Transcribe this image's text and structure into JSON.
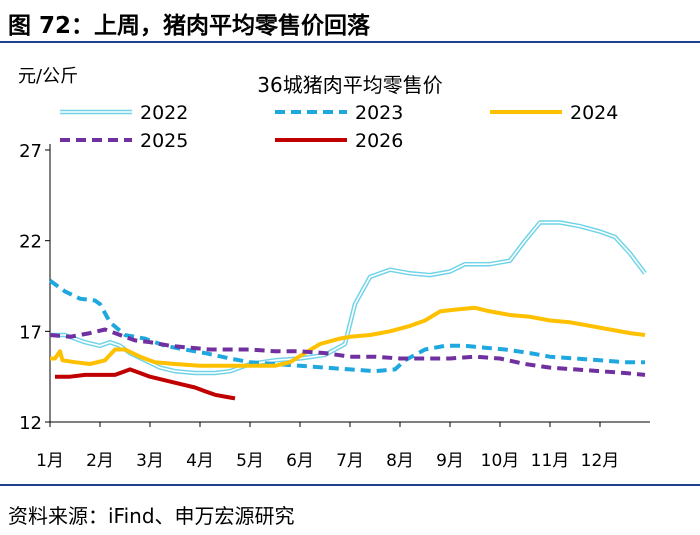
{
  "header": {
    "title": "图 72：上周，猪肉平均零售价回落"
  },
  "footer": {
    "source": "资料来源：iFind、申万宏源研究"
  },
  "chart_data": {
    "type": "line",
    "title": "36城猪肉平均零售价",
    "ylabel": "元/公斤",
    "ylim": [
      12,
      27
    ],
    "yticks": [
      12,
      17,
      22,
      27
    ],
    "xlim": [
      1,
      13
    ],
    "xticks": [
      {
        "x": 1,
        "label": "1月"
      },
      {
        "x": 2,
        "label": "2月"
      },
      {
        "x": 3,
        "label": "3月"
      },
      {
        "x": 4,
        "label": "4月"
      },
      {
        "x": 5,
        "label": "5月"
      },
      {
        "x": 6,
        "label": "6月"
      },
      {
        "x": 7,
        "label": "7月"
      },
      {
        "x": 8,
        "label": "8月"
      },
      {
        "x": 9,
        "label": "9月"
      },
      {
        "x": 10,
        "label": "10月"
      },
      {
        "x": 11,
        "label": "11月"
      },
      {
        "x": 12,
        "label": "12月"
      }
    ],
    "grid": false,
    "legend": "top",
    "series": [
      {
        "name": "2022",
        "color": "#6fd3e8",
        "style": "double",
        "points": [
          [
            1.0,
            16.8
          ],
          [
            1.3,
            16.8
          ],
          [
            1.7,
            16.4
          ],
          [
            2.0,
            16.2
          ],
          [
            2.2,
            16.4
          ],
          [
            2.4,
            16.2
          ],
          [
            2.6,
            15.8
          ],
          [
            2.9,
            15.4
          ],
          [
            3.2,
            15.0
          ],
          [
            3.5,
            14.8
          ],
          [
            3.9,
            14.7
          ],
          [
            4.3,
            14.7
          ],
          [
            4.6,
            14.8
          ],
          [
            5.0,
            15.2
          ],
          [
            5.5,
            15.4
          ],
          [
            6.0,
            15.5
          ],
          [
            6.5,
            15.7
          ],
          [
            6.9,
            16.3
          ],
          [
            7.1,
            18.5
          ],
          [
            7.4,
            20.0
          ],
          [
            7.8,
            20.4
          ],
          [
            8.2,
            20.2
          ],
          [
            8.6,
            20.1
          ],
          [
            9.0,
            20.3
          ],
          [
            9.3,
            20.7
          ],
          [
            9.8,
            20.7
          ],
          [
            10.2,
            20.9
          ],
          [
            10.5,
            22.0
          ],
          [
            10.8,
            23.0
          ],
          [
            11.2,
            23.0
          ],
          [
            11.6,
            22.8
          ],
          [
            12.0,
            22.5
          ],
          [
            12.3,
            22.2
          ],
          [
            12.6,
            21.3
          ],
          [
            12.9,
            20.2
          ]
        ]
      },
      {
        "name": "2023",
        "color": "#1fa8e0",
        "style": "dashed",
        "points": [
          [
            1.0,
            19.8
          ],
          [
            1.3,
            19.2
          ],
          [
            1.6,
            18.8
          ],
          [
            1.9,
            18.7
          ],
          [
            2.0,
            18.5
          ],
          [
            2.2,
            17.5
          ],
          [
            2.5,
            16.8
          ],
          [
            2.9,
            16.6
          ],
          [
            3.3,
            16.2
          ],
          [
            3.7,
            16.0
          ],
          [
            4.1,
            15.8
          ],
          [
            4.6,
            15.5
          ],
          [
            5.0,
            15.3
          ],
          [
            5.5,
            15.2
          ],
          [
            6.0,
            15.1
          ],
          [
            6.5,
            15.0
          ],
          [
            7.0,
            14.9
          ],
          [
            7.5,
            14.8
          ],
          [
            7.9,
            14.9
          ],
          [
            8.1,
            15.4
          ],
          [
            8.5,
            16.0
          ],
          [
            8.9,
            16.2
          ],
          [
            9.3,
            16.2
          ],
          [
            9.7,
            16.1
          ],
          [
            10.1,
            16.0
          ],
          [
            10.6,
            15.8
          ],
          [
            11.0,
            15.6
          ],
          [
            11.5,
            15.5
          ],
          [
            12.0,
            15.4
          ],
          [
            12.5,
            15.3
          ],
          [
            12.9,
            15.3
          ]
        ]
      },
      {
        "name": "2024",
        "color": "#ffc000",
        "style": "solid",
        "points": [
          [
            1.0,
            15.5
          ],
          [
            1.1,
            15.5
          ],
          [
            1.2,
            15.9
          ],
          [
            1.25,
            15.4
          ],
          [
            1.5,
            15.3
          ],
          [
            1.8,
            15.2
          ],
          [
            2.1,
            15.4
          ],
          [
            2.3,
            16.0
          ],
          [
            2.5,
            16.0
          ],
          [
            2.8,
            15.6
          ],
          [
            3.1,
            15.3
          ],
          [
            3.5,
            15.2
          ],
          [
            4.0,
            15.1
          ],
          [
            4.5,
            15.1
          ],
          [
            5.0,
            15.1
          ],
          [
            5.5,
            15.1
          ],
          [
            5.8,
            15.3
          ],
          [
            6.1,
            15.8
          ],
          [
            6.4,
            16.3
          ],
          [
            6.8,
            16.6
          ],
          [
            7.0,
            16.7
          ],
          [
            7.4,
            16.8
          ],
          [
            7.8,
            17.0
          ],
          [
            8.2,
            17.3
          ],
          [
            8.5,
            17.6
          ],
          [
            8.8,
            18.1
          ],
          [
            9.1,
            18.2
          ],
          [
            9.5,
            18.3
          ],
          [
            9.8,
            18.1
          ],
          [
            10.2,
            17.9
          ],
          [
            10.6,
            17.8
          ],
          [
            11.0,
            17.6
          ],
          [
            11.4,
            17.5
          ],
          [
            11.8,
            17.3
          ],
          [
            12.2,
            17.1
          ],
          [
            12.6,
            16.9
          ],
          [
            12.9,
            16.8
          ]
        ]
      },
      {
        "name": "2025",
        "color": "#7030a0",
        "style": "dashed",
        "points": [
          [
            1.0,
            16.8
          ],
          [
            1.4,
            16.7
          ],
          [
            1.8,
            16.9
          ],
          [
            2.1,
            17.1
          ],
          [
            2.4,
            16.8
          ],
          [
            2.7,
            16.5
          ],
          [
            3.0,
            16.4
          ],
          [
            3.4,
            16.2
          ],
          [
            3.8,
            16.1
          ],
          [
            4.2,
            16.0
          ],
          [
            4.6,
            16.0
          ],
          [
            5.0,
            16.0
          ],
          [
            5.5,
            15.9
          ],
          [
            6.0,
            15.9
          ],
          [
            6.5,
            15.8
          ],
          [
            7.0,
            15.6
          ],
          [
            7.5,
            15.6
          ],
          [
            8.0,
            15.5
          ],
          [
            8.5,
            15.5
          ],
          [
            9.0,
            15.5
          ],
          [
            9.5,
            15.6
          ],
          [
            10.0,
            15.5
          ],
          [
            10.5,
            15.2
          ],
          [
            11.0,
            15.0
          ],
          [
            11.5,
            14.9
          ],
          [
            12.0,
            14.8
          ],
          [
            12.5,
            14.7
          ],
          [
            12.9,
            14.6
          ]
        ]
      },
      {
        "name": "2026",
        "color": "#c00000",
        "style": "solid",
        "points": [
          [
            1.1,
            14.5
          ],
          [
            1.4,
            14.5
          ],
          [
            1.7,
            14.6
          ],
          [
            2.0,
            14.6
          ],
          [
            2.3,
            14.6
          ],
          [
            2.5,
            14.8
          ],
          [
            2.6,
            14.9
          ],
          [
            2.8,
            14.7
          ],
          [
            3.0,
            14.5
          ],
          [
            3.3,
            14.3
          ],
          [
            3.6,
            14.1
          ],
          [
            3.9,
            13.9
          ],
          [
            4.1,
            13.7
          ],
          [
            4.3,
            13.5
          ],
          [
            4.5,
            13.4
          ],
          [
            4.7,
            13.3
          ]
        ]
      }
    ]
  }
}
